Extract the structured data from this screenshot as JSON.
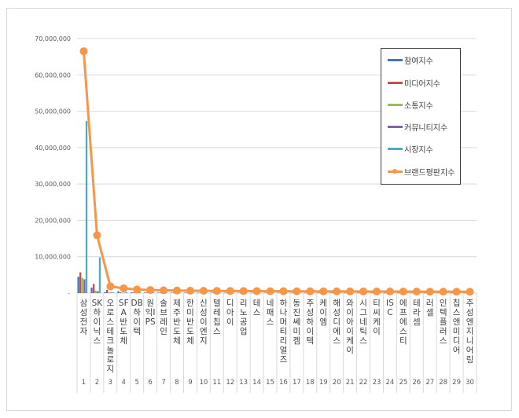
{
  "chart_data": {
    "type": "bar+line",
    "title": "",
    "xlabel": "",
    "ylabel": "",
    "ylim": [
      0,
      70000000
    ],
    "yticks": [
      "-",
      "10,000,000",
      "20,000,000",
      "30,000,000",
      "40,000,000",
      "50,000,000",
      "60,000,000",
      "70,000,000"
    ],
    "grid": true,
    "legend_position": "right-inset",
    "categories": [
      "삼성전자",
      "SK하이닉스",
      "오로스테크놀로지",
      "SFA반도체",
      "DB하이텍",
      "원익IPS",
      "솔브레인",
      "제주반도체",
      "한미반도체",
      "신성이엔지",
      "텔레칩스",
      "디아이",
      "리노공업",
      "테스",
      "네패스",
      "하나머티리얼즈",
      "동진쎄미켐",
      "주성하이텍",
      "케이엠",
      "해성디에스",
      "와이아이케이",
      "시그네틱스",
      "티씨케이",
      "ISC",
      "에프에스티",
      "테라셈",
      "러셀",
      "인텍플러스",
      "칩스앤미디어",
      "주성엔지니어링"
    ],
    "rank_numbers": [
      "1",
      "2",
      "3",
      "4",
      "5",
      "6",
      "7",
      "8",
      "9",
      "10",
      "11",
      "12",
      "13",
      "14",
      "15",
      "16",
      "17",
      "18",
      "19",
      "20",
      "21",
      "22",
      "23",
      "24",
      "25",
      "26",
      "27",
      "28",
      "29",
      "30"
    ],
    "series": [
      {
        "name": "참여지수",
        "type": "bar",
        "color": "#4472c4",
        "values": [
          4500000,
          1500000,
          300000,
          500000,
          200000,
          150000,
          150000,
          120000,
          120000,
          100000,
          100000,
          100000,
          90000,
          90000,
          90000,
          90000,
          80000,
          80000,
          80000,
          80000,
          70000,
          70000,
          70000,
          70000,
          60000,
          60000,
          60000,
          60000,
          60000,
          50000
        ]
      },
      {
        "name": "미디어지수",
        "type": "bar",
        "color": "#c0504d",
        "values": [
          5700000,
          2500000,
          900000,
          200000,
          150000,
          150000,
          120000,
          120000,
          120000,
          100000,
          100000,
          100000,
          90000,
          90000,
          90000,
          80000,
          80000,
          80000,
          80000,
          70000,
          70000,
          70000,
          70000,
          60000,
          60000,
          60000,
          60000,
          60000,
          50000,
          50000
        ]
      },
      {
        "name": "소통지수",
        "type": "bar",
        "color": "#9bbb59",
        "values": [
          4200000,
          700000,
          200000,
          150000,
          100000,
          100000,
          100000,
          90000,
          90000,
          80000,
          80000,
          80000,
          70000,
          70000,
          70000,
          70000,
          60000,
          60000,
          60000,
          60000,
          50000,
          50000,
          50000,
          50000,
          50000,
          40000,
          40000,
          40000,
          40000,
          40000
        ]
      },
      {
        "name": "커뮤니티지수",
        "type": "bar",
        "color": "#8064a2",
        "values": [
          3800000,
          500000,
          150000,
          100000,
          100000,
          90000,
          90000,
          80000,
          80000,
          70000,
          70000,
          70000,
          60000,
          60000,
          60000,
          60000,
          50000,
          50000,
          50000,
          50000,
          40000,
          40000,
          40000,
          40000,
          40000,
          30000,
          30000,
          30000,
          30000,
          30000
        ]
      },
      {
        "name": "시장지수",
        "type": "bar",
        "color": "#4bacc6",
        "values": [
          47300000,
          9800000,
          200000,
          300000,
          300000,
          200000,
          150000,
          150000,
          150000,
          120000,
          120000,
          100000,
          100000,
          100000,
          100000,
          90000,
          90000,
          80000,
          80000,
          80000,
          70000,
          70000,
          70000,
          60000,
          60000,
          60000,
          50000,
          50000,
          50000,
          50000
        ]
      },
      {
        "name": "브랜드평판지수",
        "type": "line",
        "color": "#f79646",
        "values": [
          66500000,
          15900000,
          1850000,
          1300000,
          1000000,
          850000,
          750000,
          700000,
          650000,
          620000,
          600000,
          580000,
          560000,
          540000,
          520000,
          500000,
          490000,
          480000,
          470000,
          460000,
          450000,
          440000,
          430000,
          420000,
          410000,
          400000,
          390000,
          380000,
          370000,
          360000
        ]
      }
    ]
  },
  "legend": {
    "items": [
      {
        "label": "참여지수",
        "color": "#4472c4"
      },
      {
        "label": "미디어지수",
        "color": "#c0504d"
      },
      {
        "label": "소통지수",
        "color": "#9bbb59"
      },
      {
        "label": "커뮤니티지수",
        "color": "#8064a2"
      },
      {
        "label": "시장지수",
        "color": "#4bacc6"
      },
      {
        "label": "브랜드평판지수",
        "color": "#f79646"
      }
    ]
  }
}
